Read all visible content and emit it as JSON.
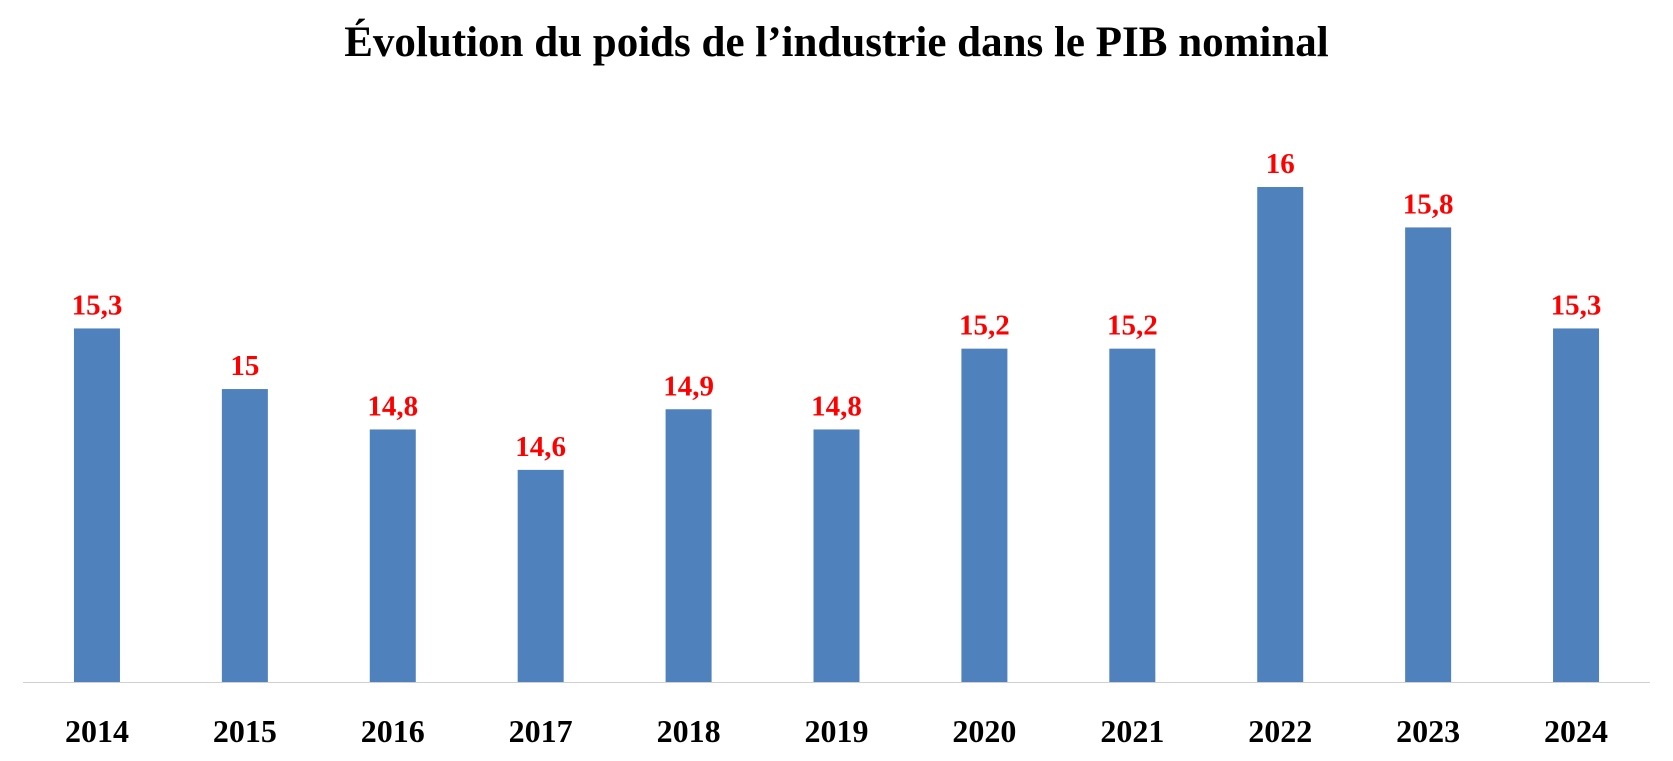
{
  "chart_data": {
    "type": "bar",
    "title": "Évolution du poids de l’industrie dans le PIB nominal",
    "categories": [
      "2014",
      "2015",
      "2016",
      "2017",
      "2018",
      "2019",
      "2020",
      "2021",
      "2022",
      "2023",
      "2024"
    ],
    "values": [
      15.3,
      15,
      14.8,
      14.6,
      14.9,
      14.8,
      15.2,
      15.2,
      16,
      15.8,
      15.3
    ],
    "data_labels": [
      "15,3",
      "15",
      "14,8",
      "14,6",
      "14,9",
      "14,8",
      "15,2",
      "15,2",
      "16",
      "15,8",
      "15,3"
    ],
    "xlabel": "",
    "ylabel": "",
    "ylim": [
      13.55,
      16.5
    ],
    "y_axis_visible": false,
    "grid": false,
    "legend": "none",
    "colors": {
      "bar": "#4f81bd",
      "data_label": "#ff0000",
      "axis": "#d0d0d0"
    }
  }
}
